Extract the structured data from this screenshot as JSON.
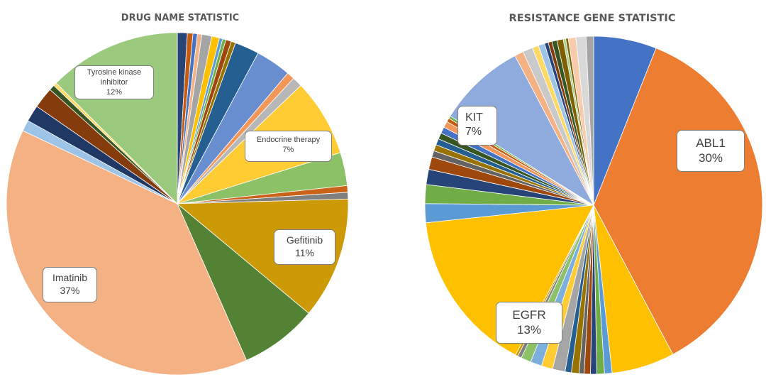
{
  "chart_data": [
    {
      "type": "pie",
      "title": "DRUG NAME STATISTIC",
      "unit": "%",
      "slices": [
        {
          "label": "",
          "value": 0.9,
          "color": "#264478"
        },
        {
          "label": "",
          "value": 0.5,
          "color": "#c55a11"
        },
        {
          "label": "",
          "value": 0.4,
          "color": "#4472c4"
        },
        {
          "label": "",
          "value": 0.4,
          "color": "#f4b183"
        },
        {
          "label": "",
          "value": 0.9,
          "color": "#a5a5a5"
        },
        {
          "label": "",
          "value": 0.7,
          "color": "#ffc000"
        },
        {
          "label": "",
          "value": 0.3,
          "color": "#5b9bd5"
        },
        {
          "label": "",
          "value": 0.3,
          "color": "#70ad47"
        },
        {
          "label": "",
          "value": 0.5,
          "color": "#9e480e"
        },
        {
          "label": "",
          "value": 0.4,
          "color": "#997300"
        },
        {
          "label": "",
          "value": 2.2,
          "color": "#255e91"
        },
        {
          "label": "",
          "value": 3.2,
          "color": "#698ed0"
        },
        {
          "label": "",
          "value": 0.7,
          "color": "#f1975a"
        },
        {
          "label": "",
          "value": 0.9,
          "color": "#b7b7b7"
        },
        {
          "label": "Endocrine therapy",
          "value": 7,
          "color": "#ffcd33"
        },
        {
          "label": "",
          "value": 3.0,
          "color": "#8cc168"
        },
        {
          "label": "",
          "value": 0.6,
          "color": "#ca6218"
        },
        {
          "label": "",
          "value": 0.6,
          "color": "#7f7f7f"
        },
        {
          "label": "Gefitinib",
          "value": 11,
          "color": "#cc9a06"
        },
        {
          "label": "",
          "value": 7.0,
          "color": "#548235"
        },
        {
          "label": "Imatinib",
          "value": 37,
          "color": "#f4b183"
        },
        {
          "label": "",
          "value": 1.0,
          "color": "#9dc3e6"
        },
        {
          "label": "",
          "value": 1.5,
          "color": "#203864"
        },
        {
          "label": "",
          "value": 1.9,
          "color": "#843c0c"
        },
        {
          "label": "",
          "value": 0.5,
          "color": "#375623"
        },
        {
          "label": "",
          "value": 0.3,
          "color": "#ffd966"
        },
        {
          "label": "Tyrosine kinase inhibitor",
          "value": 12,
          "color": "#9bc97d"
        }
      ]
    },
    {
      "type": "pie",
      "title": "RESISTANCE GENE STATISTIC",
      "unit": "%",
      "slices": [
        {
          "label": "",
          "value": 5.0,
          "color": "#4472c4"
        },
        {
          "label": "ABL1",
          "value": 30,
          "color": "#ed7d31"
        },
        {
          "label": "",
          "value": 5.0,
          "color": "#ffc000"
        },
        {
          "label": "",
          "value": 0.6,
          "color": "#5b9bd5"
        },
        {
          "label": "",
          "value": 0.6,
          "color": "#70ad47"
        },
        {
          "label": "",
          "value": 0.5,
          "color": "#264478"
        },
        {
          "label": "",
          "value": 0.5,
          "color": "#9e480e"
        },
        {
          "label": "",
          "value": 0.4,
          "color": "#636363"
        },
        {
          "label": "",
          "value": 0.6,
          "color": "#997300"
        },
        {
          "label": "",
          "value": 0.5,
          "color": "#255e91"
        },
        {
          "label": "",
          "value": 1.0,
          "color": "#a5a5a5"
        },
        {
          "label": "",
          "value": 0.9,
          "color": "#ffcd33"
        },
        {
          "label": "",
          "value": 0.9,
          "color": "#7cafdd"
        },
        {
          "label": "",
          "value": 0.8,
          "color": "#8cc168"
        },
        {
          "label": "",
          "value": 0.3,
          "color": "#7f7f7f"
        },
        {
          "label": "",
          "value": 0.2,
          "color": "#cc9a06"
        },
        {
          "label": "EGFR",
          "value": 13,
          "color": "#ffc000"
        },
        {
          "label": "",
          "value": 1.5,
          "color": "#5b9bd5"
        },
        {
          "label": "",
          "value": 1.5,
          "color": "#70ad47"
        },
        {
          "label": "",
          "value": 1.2,
          "color": "#264478"
        },
        {
          "label": "",
          "value": 1.0,
          "color": "#9e480e"
        },
        {
          "label": "",
          "value": 0.5,
          "color": "#636363"
        },
        {
          "label": "",
          "value": 0.5,
          "color": "#997300"
        },
        {
          "label": "",
          "value": 0.5,
          "color": "#255e91"
        },
        {
          "label": "",
          "value": 0.5,
          "color": "#375623"
        },
        {
          "label": "",
          "value": 0.5,
          "color": "#4472c4"
        },
        {
          "label": "",
          "value": 0.5,
          "color": "#f1975a"
        },
        {
          "label": "",
          "value": 0.3,
          "color": "#c55a11"
        },
        {
          "label": "",
          "value": 0.2,
          "color": "#70ad47"
        },
        {
          "label": "KIT",
          "value": 7,
          "color": "#8faadc"
        },
        {
          "label": "",
          "value": 0.7,
          "color": "#f4b183"
        },
        {
          "label": "",
          "value": 0.8,
          "color": "#c9c9c9"
        },
        {
          "label": "",
          "value": 0.5,
          "color": "#ffd966"
        },
        {
          "label": "",
          "value": 0.5,
          "color": "#9dc3e6"
        },
        {
          "label": "",
          "value": 0.3,
          "color": "#264478"
        },
        {
          "label": "",
          "value": 0.3,
          "color": "#843c0c"
        },
        {
          "label": "",
          "value": 0.4,
          "color": "#375623"
        },
        {
          "label": "",
          "value": 0.5,
          "color": "#7f6000"
        },
        {
          "label": "",
          "value": 0.2,
          "color": "#a9d18e"
        },
        {
          "label": "",
          "value": 0.2,
          "color": "#806000"
        },
        {
          "label": "",
          "value": 0.6,
          "color": "#f8cbad"
        },
        {
          "label": "",
          "value": 0.8,
          "color": "#d9d9d9"
        },
        {
          "label": "",
          "value": 0.6,
          "color": "#a5a5a5"
        }
      ]
    }
  ],
  "callouts": {
    "drug": [
      {
        "name": "Tyrosine kinase inhibitor",
        "pct": "12%",
        "name_lines": [
          "Tyrosine kinase",
          "inhibitor"
        ]
      },
      {
        "name": "Endocrine therapy",
        "pct": "7%",
        "name_lines": [
          "Endocrine therapy"
        ]
      },
      {
        "name": "Gefitinib",
        "pct": "11%",
        "name_lines": [
          "Gefitinib"
        ]
      },
      {
        "name": "Imatinib",
        "pct": "37%",
        "name_lines": [
          "Imatinib"
        ]
      }
    ],
    "gene": [
      {
        "name": "KIT",
        "pct": "7%",
        "name_lines": [
          "KIT"
        ]
      },
      {
        "name": "ABL1",
        "pct": "30%",
        "name_lines": [
          "ABL1"
        ]
      },
      {
        "name": "EGFR",
        "pct": "13%",
        "name_lines": [
          "EGFR"
        ]
      }
    ]
  }
}
